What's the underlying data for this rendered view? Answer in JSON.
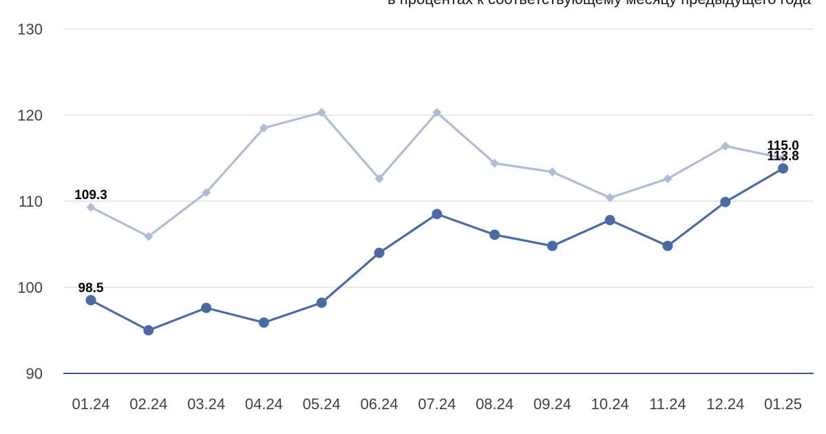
{
  "chart_data": {
    "type": "line",
    "subtitle": "в процентах к соответствующему месяцу предыдущего года",
    "categories": [
      "01.24",
      "02.24",
      "03.24",
      "04.24",
      "05.24",
      "06.24",
      "07.24",
      "08.24",
      "09.24",
      "10.24",
      "11.24",
      "12.24",
      "01.25"
    ],
    "ylim": [
      90,
      130
    ],
    "yticks": [
      90,
      100,
      110,
      120,
      130
    ],
    "grid": true,
    "series": [
      {
        "color": "#aebcd6",
        "marker": "diamond",
        "values": [
          109.3,
          105.9,
          111.0,
          118.5,
          120.3,
          112.6,
          120.3,
          114.4,
          113.4,
          110.4,
          112.6,
          116.4,
          115.0
        ],
        "labels": [
          {
            "index": 0,
            "text": "109.3"
          },
          {
            "index": 12,
            "text": "115.0"
          }
        ]
      },
      {
        "color": "#4a6aa5",
        "marker": "circle",
        "values": [
          98.5,
          95.0,
          97.6,
          95.9,
          98.2,
          104.0,
          108.5,
          106.1,
          104.8,
          107.8,
          104.8,
          109.9,
          113.8
        ],
        "labels": [
          {
            "index": 0,
            "text": "98.5"
          },
          {
            "index": 12,
            "text": "113.8"
          }
        ]
      }
    ]
  }
}
